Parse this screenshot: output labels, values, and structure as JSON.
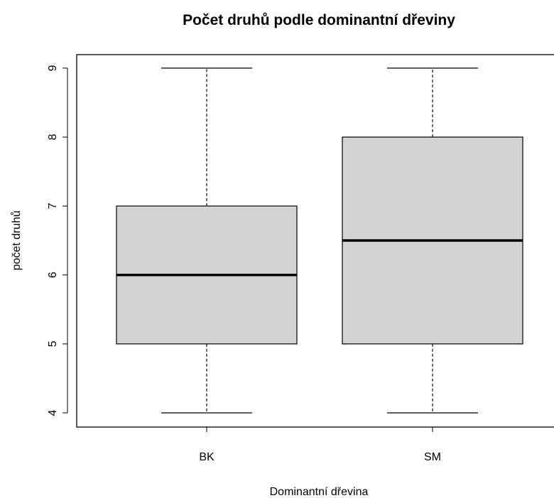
{
  "chart_data": {
    "type": "boxplot",
    "title": "Počet druhů podle dominantní dřeviny",
    "xlabel": "Dominantní dřevina",
    "ylabel": "počet druhů",
    "categories": [
      "BK",
      "SM"
    ],
    "boxes": [
      {
        "category": "BK",
        "min": 4,
        "q1": 5,
        "median": 6,
        "q3": 7,
        "max": 9
      },
      {
        "category": "SM",
        "min": 4,
        "q1": 5,
        "median": 6.5,
        "q3": 8,
        "max": 9
      }
    ],
    "ylim": [
      4,
      9
    ],
    "yticks": [
      4,
      5,
      6,
      7,
      8,
      9
    ],
    "grid": false,
    "box_fill": "#d3d3d3",
    "line_color": "#000000"
  }
}
